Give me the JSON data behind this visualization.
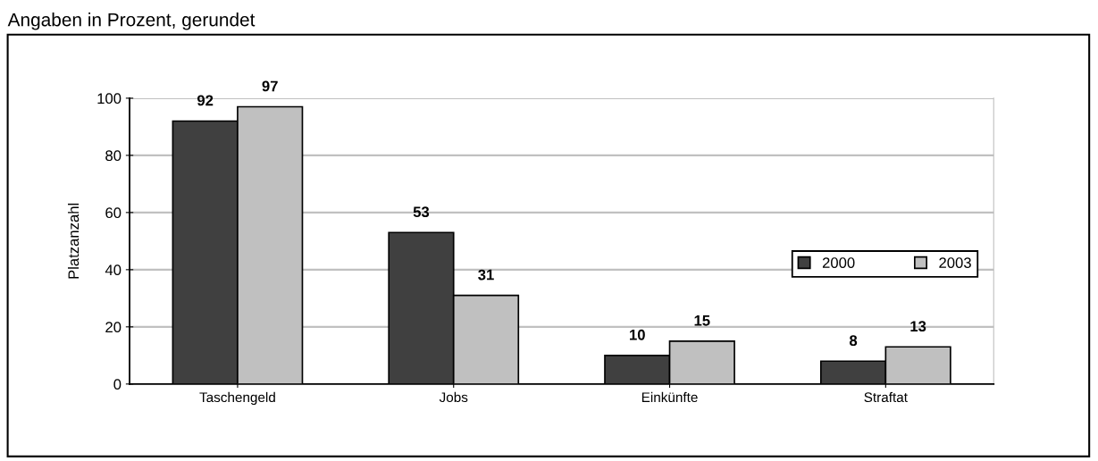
{
  "chart_data": {
    "type": "bar",
    "title": "Angaben in Prozent, gerundet",
    "ylabel": "Platzanzahl",
    "categories": [
      "Taschengeld",
      "Jobs",
      "Einkünfte",
      "Straftat"
    ],
    "series": [
      {
        "name": "2000",
        "color": "#404040",
        "values": [
          92,
          53,
          10,
          8
        ]
      },
      {
        "name": "2003",
        "color": "#c0c0c0",
        "values": [
          97,
          31,
          15,
          13
        ]
      }
    ],
    "ylim": [
      0,
      100
    ],
    "yticks": [
      0,
      20,
      40,
      60,
      80,
      100
    ],
    "grid": "y",
    "legend": "right",
    "data_labels": true
  }
}
